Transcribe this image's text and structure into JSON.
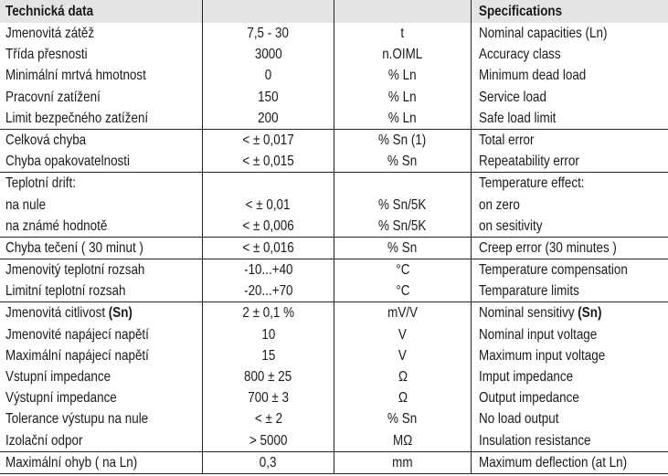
{
  "header": {
    "cs": "Technická data",
    "val": "",
    "unit": "",
    "en": "Specifications"
  },
  "groups": [
    [
      {
        "cs": "Jmenovitá zátěž",
        "val": "7,5 - 30",
        "unit": "t",
        "en": "Nominal capacities (Ln)"
      },
      {
        "cs": "Třída přesnosti",
        "val": "3000",
        "unit": "n.OIML",
        "en": "Accuracy class"
      },
      {
        "cs": "Minimální mrtvá hmotnost",
        "val": "0",
        "unit": "% Ln",
        "en": "Minimum dead load"
      },
      {
        "cs": "Pracovní zatížení",
        "val": "150",
        "unit": "% Ln",
        "en": "Service load"
      },
      {
        "cs": "Limit bezpečného zatížení",
        "val": "200",
        "unit": "% Ln",
        "en": "Safe load limit"
      }
    ],
    [
      {
        "cs": "Celková chyba",
        "val": "< ± 0,017",
        "unit": "% Sn (1)",
        "en": "Total error"
      },
      {
        "cs": "Chyba opakovatelnosti",
        "val": "< ± 0,015",
        "unit": "% Sn",
        "en": "Repeatability error"
      }
    ],
    [
      {
        "cs": "Teplotní drift:",
        "val": "",
        "unit": "",
        "en": "Temperature effect:"
      },
      {
        "cs": "na nule",
        "val": "< ± 0,01",
        "unit": "% Sn/5K",
        "en": "on zero"
      },
      {
        "cs": "na známé hodnotě",
        "val": "< ± 0,006",
        "unit": "% Sn/5K",
        "en": "on sesitivity"
      }
    ],
    [
      {
        "cs": "Chyba tečení ( 30 minut )",
        "val": "< ± 0,016",
        "unit": "% Sn",
        "en": "Creep error (30 minutes )"
      }
    ],
    [
      {
        "cs": "Jmenovitý teplotní rozsah",
        "val": "-10...+40",
        "unit": "°C",
        "en": "Temperature compensation"
      },
      {
        "cs": "Limitní teplotní rozsah",
        "val": "-20...+70",
        "unit": "°C",
        "en": "Temparature limits"
      }
    ],
    [
      {
        "cs": "Jmenovitá citlivost ",
        "cs_b": "(Sn)",
        "val": "2 ± 0,1 %",
        "unit": "mV/V",
        "en": "Nominal sensitivy ",
        "en_b": "(Sn)"
      },
      {
        "cs": "Jmenovité napájecí napětí",
        "val": "10",
        "unit": "V",
        "en": "Nominal input voltage"
      },
      {
        "cs": "Maximální napájecí napětí",
        "val": "15",
        "unit": "V",
        "en": "Maximum input voltage"
      },
      {
        "cs": "Vstupní impedance",
        "val": "800 ± 25",
        "unit": "Ω",
        "en": "Imput impedance"
      },
      {
        "cs": "Výstupní impedance",
        "val": "700 ± 3",
        "unit": "Ω",
        "en": "Output impedance"
      },
      {
        "cs": "Tolerance výstupu na nule",
        "val": "< ± 2",
        "unit": "% Sn",
        "en": "No load output"
      },
      {
        "cs": "Izolační odpor",
        "val": "> 5000",
        "unit": "MΩ",
        "en": "Insulation resistance"
      }
    ],
    [
      {
        "cs": "Maximální ohyb ( na Ln)",
        "val": "0,3",
        "unit": "mm",
        "en": "Maximum deflection (at Ln)"
      }
    ]
  ]
}
